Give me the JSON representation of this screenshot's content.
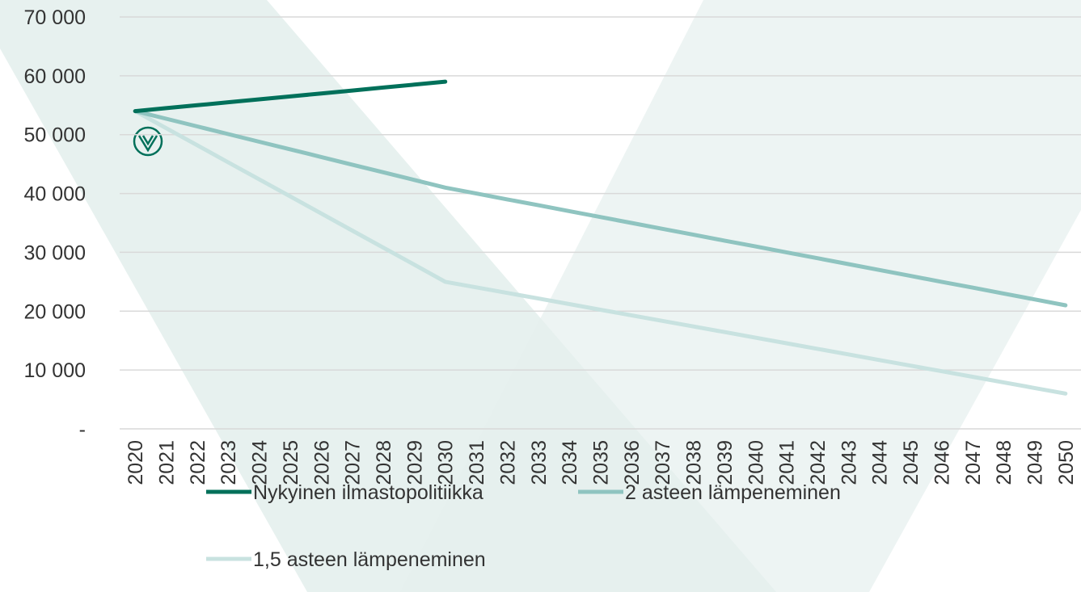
{
  "chart_data": {
    "type": "line",
    "categories": [
      "2020",
      "2021",
      "2022",
      "2023",
      "2024",
      "2025",
      "2026",
      "2027",
      "2028",
      "2029",
      "2030",
      "2031",
      "2032",
      "2033",
      "2034",
      "2035",
      "2036",
      "2037",
      "2038",
      "2039",
      "2040",
      "2041",
      "2042",
      "2043",
      "2044",
      "2045",
      "2046",
      "2047",
      "2048",
      "2049",
      "2050"
    ],
    "series": [
      {
        "name": "Nykyinen ilmastopolitiikka",
        "color": "#00705a",
        "values": [
          54000,
          54500,
          55000,
          55500,
          56000,
          56500,
          57000,
          57500,
          58000,
          58500,
          59000,
          null,
          null,
          null,
          null,
          null,
          null,
          null,
          null,
          null,
          null,
          null,
          null,
          null,
          null,
          null,
          null,
          null,
          null,
          null,
          null
        ]
      },
      {
        "name": "2 asteen lämpeneminen",
        "color": "#8fc4c0",
        "values": [
          54000,
          52700,
          51400,
          50100,
          48800,
          47500,
          46200,
          44900,
          43600,
          42300,
          41000,
          40000,
          39000,
          38000,
          37000,
          36000,
          35000,
          34000,
          33000,
          32000,
          31000,
          30000,
          29000,
          28000,
          27000,
          26000,
          25000,
          24000,
          23000,
          22000,
          21000
        ]
      },
      {
        "name": "1,5 asteen lämpeneminen",
        "color": "#c8e2e0",
        "values": [
          54000,
          51100,
          48200,
          45300,
          42400,
          39500,
          36600,
          33700,
          30800,
          27900,
          25000,
          24050,
          23100,
          22150,
          21200,
          20250,
          19300,
          18350,
          17400,
          16450,
          15500,
          14550,
          13600,
          12650,
          11700,
          10750,
          9800,
          8850,
          7900,
          6950,
          6000
        ]
      }
    ],
    "ylim": [
      0,
      70000
    ],
    "yticks": [
      {
        "value": 0,
        "label": "-"
      },
      {
        "value": 10000,
        "label": "10 000"
      },
      {
        "value": 20000,
        "label": "20 000"
      },
      {
        "value": 30000,
        "label": "30 000"
      },
      {
        "value": 40000,
        "label": "40 000"
      },
      {
        "value": 50000,
        "label": "50 000"
      },
      {
        "value": 60000,
        "label": "60 000"
      },
      {
        "value": 70000,
        "label": "70 000"
      }
    ],
    "grid": true,
    "legend": "bottom"
  }
}
